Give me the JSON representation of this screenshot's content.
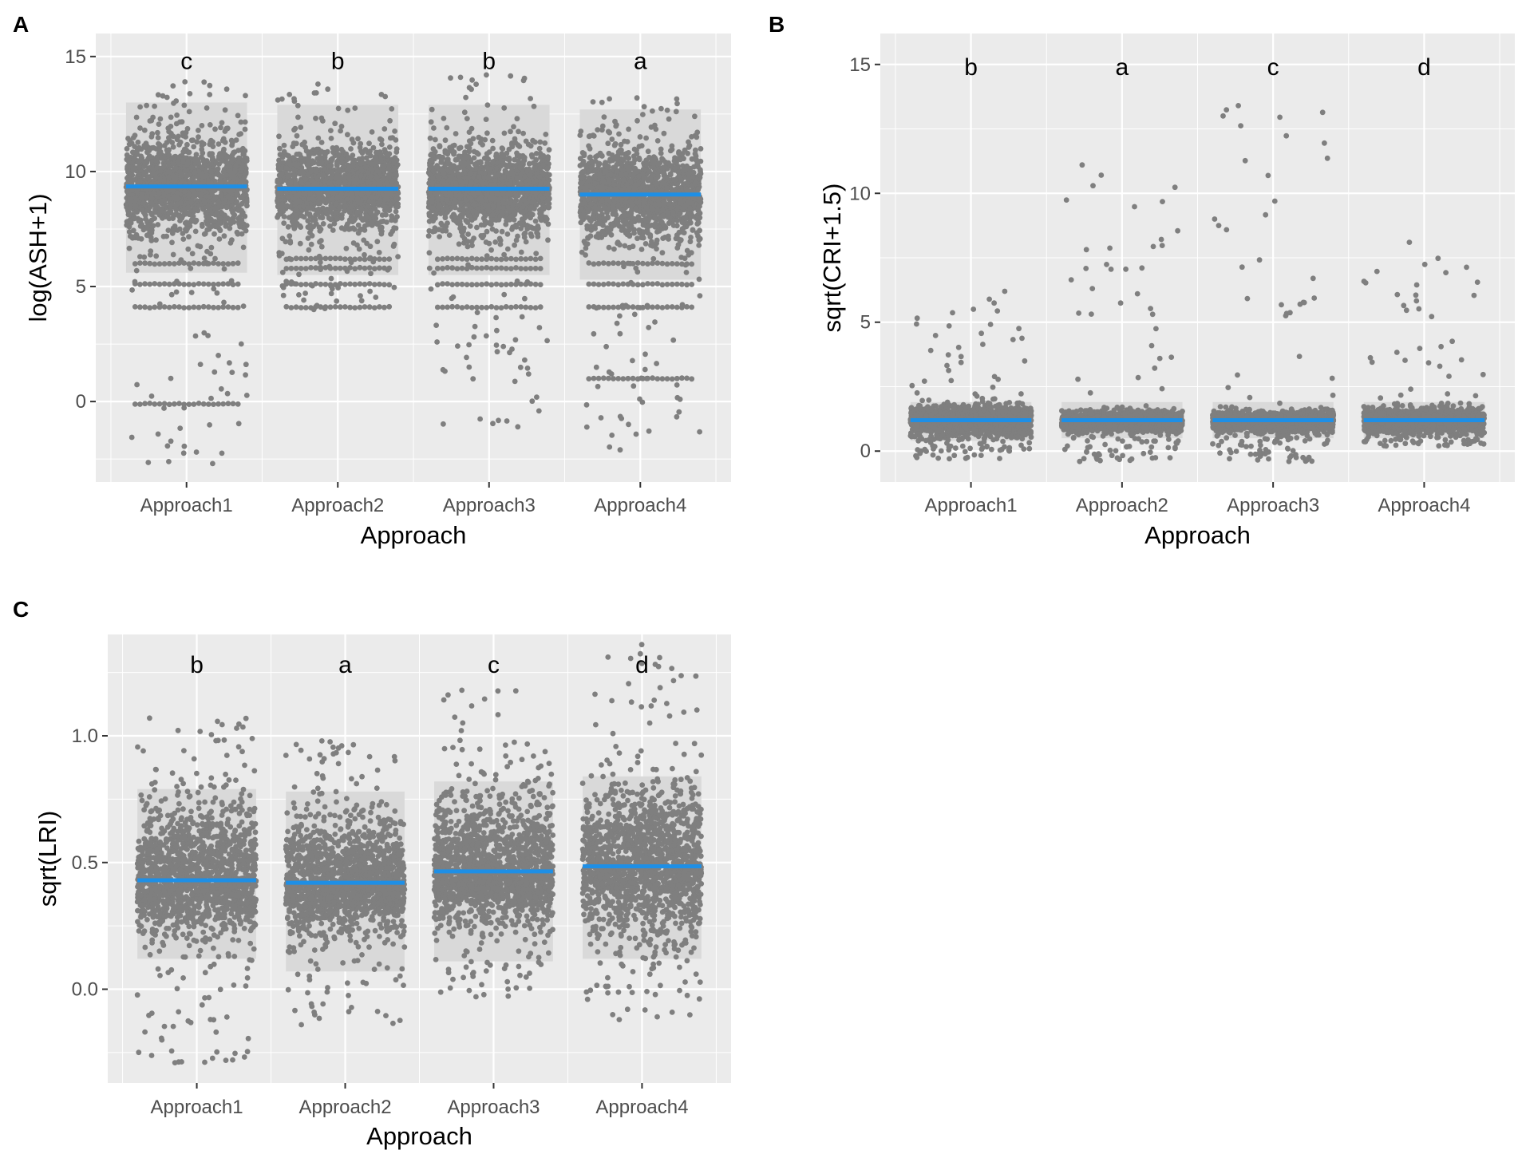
{
  "colors": {
    "panel_bg": "#ebebeb",
    "grid_major": "#ffffff",
    "points": "#7f7f7f",
    "band": "#d9d9d9",
    "mean_line": "#1e8fe6"
  },
  "chart_data": [
    {
      "panel": "A",
      "type": "scatter",
      "subtype": "jitter",
      "xlabel": "Approach",
      "ylabel": "log(ASH+1)",
      "categories": [
        "Approach1",
        "Approach2",
        "Approach3",
        "Approach4"
      ],
      "ylim": [
        -3.5,
        16
      ],
      "yticks": [
        0,
        5,
        10,
        15
      ],
      "ytick_labels": [
        "0",
        "5",
        "10",
        "15"
      ],
      "letters": [
        "c",
        "b",
        "b",
        "a"
      ],
      "letter_y": 14.8,
      "means": [
        9.35,
        9.25,
        9.25,
        9.0
      ],
      "band_low": [
        5.6,
        5.5,
        5.5,
        5.3
      ],
      "band_high": [
        13.0,
        12.9,
        12.9,
        12.7
      ],
      "core_low": [
        7.5,
        7.7,
        7.7,
        7.2
      ],
      "core_high": [
        11.2,
        10.8,
        10.8,
        10.8
      ],
      "tail_low": [
        -2.7,
        4.0,
        -1.1,
        -2.1
      ],
      "tail_high": [
        13.9,
        13.8,
        14.2,
        13.2
      ],
      "notable_levels": [
        [
          4.1,
          -0.1,
          5.1,
          6.0
        ],
        [
          4.1,
          5.1,
          5.8,
          6.2
        ],
        [
          4.1,
          5.1,
          5.8,
          6.2
        ],
        [
          1.0,
          4.1,
          5.1,
          6.0
        ]
      ]
    },
    {
      "panel": "B",
      "type": "scatter",
      "subtype": "jitter",
      "xlabel": "Approach",
      "ylabel": "sqrt(CRI+1.5)",
      "categories": [
        "Approach1",
        "Approach2",
        "Approach3",
        "Approach4"
      ],
      "ylim": [
        -1.2,
        16.2
      ],
      "yticks": [
        0,
        5,
        10,
        15
      ],
      "ytick_labels": [
        "0",
        "5",
        "10",
        "15"
      ],
      "letters": [
        "b",
        "a",
        "c",
        "d"
      ],
      "letter_y": 14.9,
      "means": [
        1.2,
        1.2,
        1.2,
        1.2
      ],
      "band_low": [
        0.4,
        0.5,
        0.5,
        0.5
      ],
      "band_high": [
        1.9,
        1.9,
        1.9,
        1.9
      ],
      "core_low": [
        0.7,
        0.8,
        0.8,
        0.8
      ],
      "core_high": [
        1.7,
        1.5,
        1.5,
        1.6
      ],
      "tail_low": [
        -0.3,
        -0.4,
        -0.4,
        0.2
      ],
      "tail_high": [
        6.2,
        11.1,
        13.4,
        8.1
      ],
      "notable_levels": [
        [],
        [],
        [],
        []
      ]
    },
    {
      "panel": "C",
      "type": "scatter",
      "subtype": "jitter",
      "xlabel": "Approach",
      "ylabel": "sqrt(LRI)",
      "categories": [
        "Approach1",
        "Approach2",
        "Approach3",
        "Approach4"
      ],
      "ylim": [
        -0.37,
        1.4
      ],
      "yticks": [
        0.0,
        0.5,
        1.0
      ],
      "ytick_labels": [
        "0.0",
        "0.5",
        "1.0"
      ],
      "letters": [
        "b",
        "a",
        "c",
        "d"
      ],
      "letter_y": 1.28,
      "means": [
        0.43,
        0.42,
        0.465,
        0.485
      ],
      "band_low": [
        0.12,
        0.07,
        0.11,
        0.12
      ],
      "band_high": [
        0.79,
        0.78,
        0.82,
        0.84
      ],
      "core_low": [
        0.25,
        0.25,
        0.28,
        0.25
      ],
      "core_high": [
        0.7,
        0.65,
        0.72,
        0.75
      ],
      "tail_low": [
        -0.29,
        -0.14,
        -0.03,
        -0.12
      ],
      "tail_high": [
        1.07,
        0.98,
        1.18,
        1.36
      ],
      "notable_levels": [
        [],
        [],
        [],
        []
      ]
    }
  ]
}
